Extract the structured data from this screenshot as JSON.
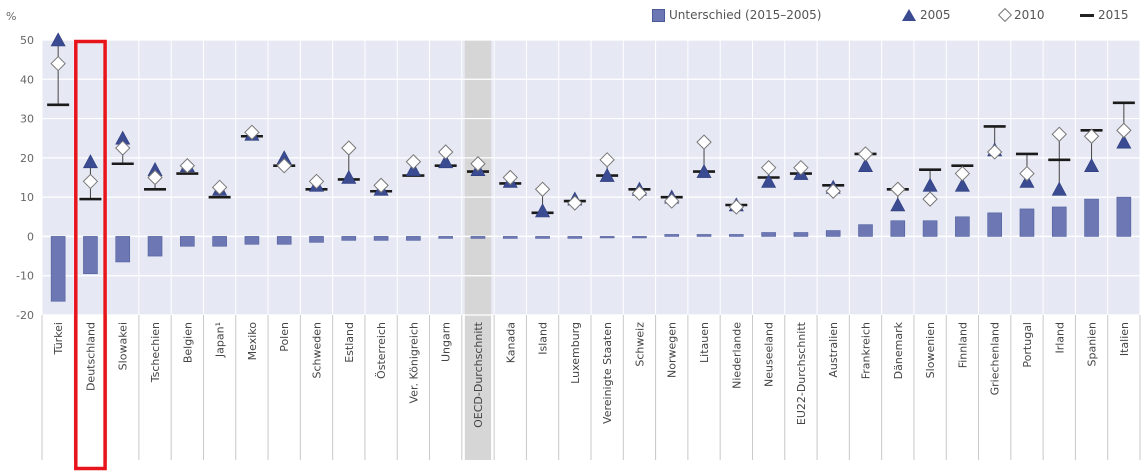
{
  "chart_data": {
    "type": "bar",
    "unit_label": "%",
    "yticks": [
      -20,
      -10,
      0,
      10,
      20,
      30,
      40,
      50
    ],
    "ylim": [
      -20,
      50
    ],
    "grid": true,
    "legend_position": "top-right",
    "legend": {
      "bar": "Unterschied (2015–2005)",
      "y2005": "2005",
      "y2010": "2010",
      "y2015": "2015"
    },
    "categories": [
      "Türkei",
      "Deutschland",
      "Slowakei",
      "Tschechien",
      "Belgien",
      "Japan¹",
      "Mexiko",
      "Polen",
      "Schweden",
      "Estland",
      "Österreich",
      "Ver. Königreich",
      "Ungarn",
      "OECD-Durchschnitt",
      "Kanada",
      "Island",
      "Luxemburg",
      "Vereinigte Staaten",
      "Schweiz",
      "Norwegen",
      "Litauen",
      "Niederlande",
      "Neuseeland",
      "EU22-Durchschnitt",
      "Australien",
      "Frankreich",
      "Dänemark",
      "Slowenien",
      "Finnland",
      "Griechenland",
      "Portugal",
      "Irland",
      "Spanien",
      "Italien"
    ],
    "series": [
      {
        "name": "Unterschied (2015–2005)",
        "kind": "bar",
        "values": [
          -16.5,
          -9.5,
          -6.5,
          -5,
          -2.5,
          -2.5,
          -2,
          -2,
          -1.5,
          -1,
          -1,
          -1,
          -0.5,
          -0.5,
          -0.5,
          -0.5,
          -0.5,
          0,
          0,
          0.5,
          0.5,
          0.5,
          1,
          1,
          1.5,
          3,
          4,
          4,
          5,
          6,
          7,
          7.5,
          9.5,
          10
        ]
      },
      {
        "name": "2005",
        "kind": "triangle",
        "values": [
          50,
          19,
          25,
          17,
          18,
          12,
          26,
          20,
          13,
          15,
          12,
          17,
          19,
          17,
          14,
          6.5,
          9.5,
          15.5,
          12,
          10,
          16.5,
          8,
          14,
          16,
          12.5,
          18,
          8,
          13,
          13,
          22,
          14,
          12,
          18,
          24
        ]
      },
      {
        "name": "2010",
        "kind": "diamond",
        "values": [
          44,
          14,
          22.5,
          15,
          18,
          12.5,
          26.5,
          18,
          14,
          22.5,
          13,
          19,
          21.5,
          18.5,
          15,
          12,
          8.5,
          19.5,
          11,
          9,
          24,
          7.5,
          17.5,
          17.5,
          11.5,
          21,
          12,
          9.5,
          16,
          21.5,
          16,
          26,
          25.5,
          27
        ]
      },
      {
        "name": "2015",
        "kind": "line",
        "values": [
          33.5,
          9.5,
          18.5,
          12,
          16,
          10,
          25.5,
          18,
          12,
          14.5,
          11.5,
          15.5,
          18,
          16.5,
          13.5,
          6,
          9,
          15.5,
          12,
          10,
          16.5,
          8,
          15,
          16,
          13,
          21,
          12,
          17,
          18,
          28,
          21,
          19.5,
          27,
          34
        ]
      }
    ],
    "highlight_category": "Deutschland",
    "average_categories": [
      "OECD-Durchschnitt"
    ]
  }
}
